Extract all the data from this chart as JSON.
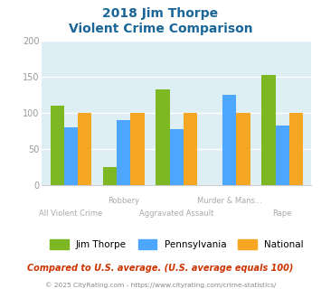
{
  "title_line1": "2018 Jim Thorpe",
  "title_line2": "Violent Crime Comparison",
  "categories": [
    "All Violent Crime",
    "Robbery",
    "Aggravated Assault",
    "Murder & Mans...",
    "Rape"
  ],
  "jim_thorpe": [
    110,
    25,
    132,
    0,
    152
  ],
  "pennsylvania": [
    80,
    90,
    77,
    125,
    82
  ],
  "national": [
    100,
    100,
    100,
    100,
    100
  ],
  "jim_thorpe_color": "#7db724",
  "pennsylvania_color": "#4da6ff",
  "national_color": "#f5a623",
  "bg_color": "#ddeef5",
  "ylim": [
    0,
    200
  ],
  "yticks": [
    0,
    50,
    100,
    150,
    200
  ],
  "legend_labels": [
    "Jim Thorpe",
    "Pennsylvania",
    "National"
  ],
  "footnote1": "Compared to U.S. average. (U.S. average equals 100)",
  "footnote2": "© 2025 CityRating.com - https://www.cityrating.com/crime-statistics/",
  "title_color": "#1a6699",
  "footnote1_color": "#cc3300",
  "footnote2_color": "#888888",
  "xlabel_color": "#aaaaaa",
  "stagger_up": [
    1,
    3
  ],
  "stagger_down": [
    0,
    2,
    4
  ]
}
